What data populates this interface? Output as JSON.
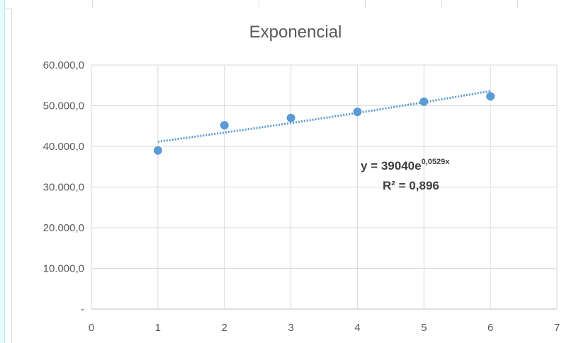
{
  "chart_data": {
    "type": "scatter",
    "title": "Exponencial",
    "xlabel": "",
    "ylabel": "",
    "xlim": [
      0,
      7
    ],
    "ylim": [
      0,
      60000
    ],
    "x_ticks": [
      "0",
      "1",
      "2",
      "3",
      "4",
      "5",
      "6",
      "7"
    ],
    "y_ticks": [
      "-",
      "10.000,0",
      "20.000,0",
      "30.000,0",
      "40.000,0",
      "50.000,0",
      "60.000,0"
    ],
    "grid": "vertical and horizontal major gridlines",
    "series": [
      {
        "color": "#5b9bd5",
        "x": [
          1,
          2,
          3,
          4,
          5,
          6
        ],
        "y": [
          39000,
          45200,
          47000,
          48500,
          51000,
          52300
        ]
      }
    ],
    "trendline": {
      "type": "exponential",
      "a": 39040,
      "b": 0.0529,
      "x_range": [
        1,
        6
      ],
      "style": "dotted",
      "color": "#5b9bd5"
    },
    "annotations": {
      "equation_main": "y = 39040e",
      "equation_exponent": "0,0529x",
      "r_squared": "R² = 0,896"
    }
  }
}
